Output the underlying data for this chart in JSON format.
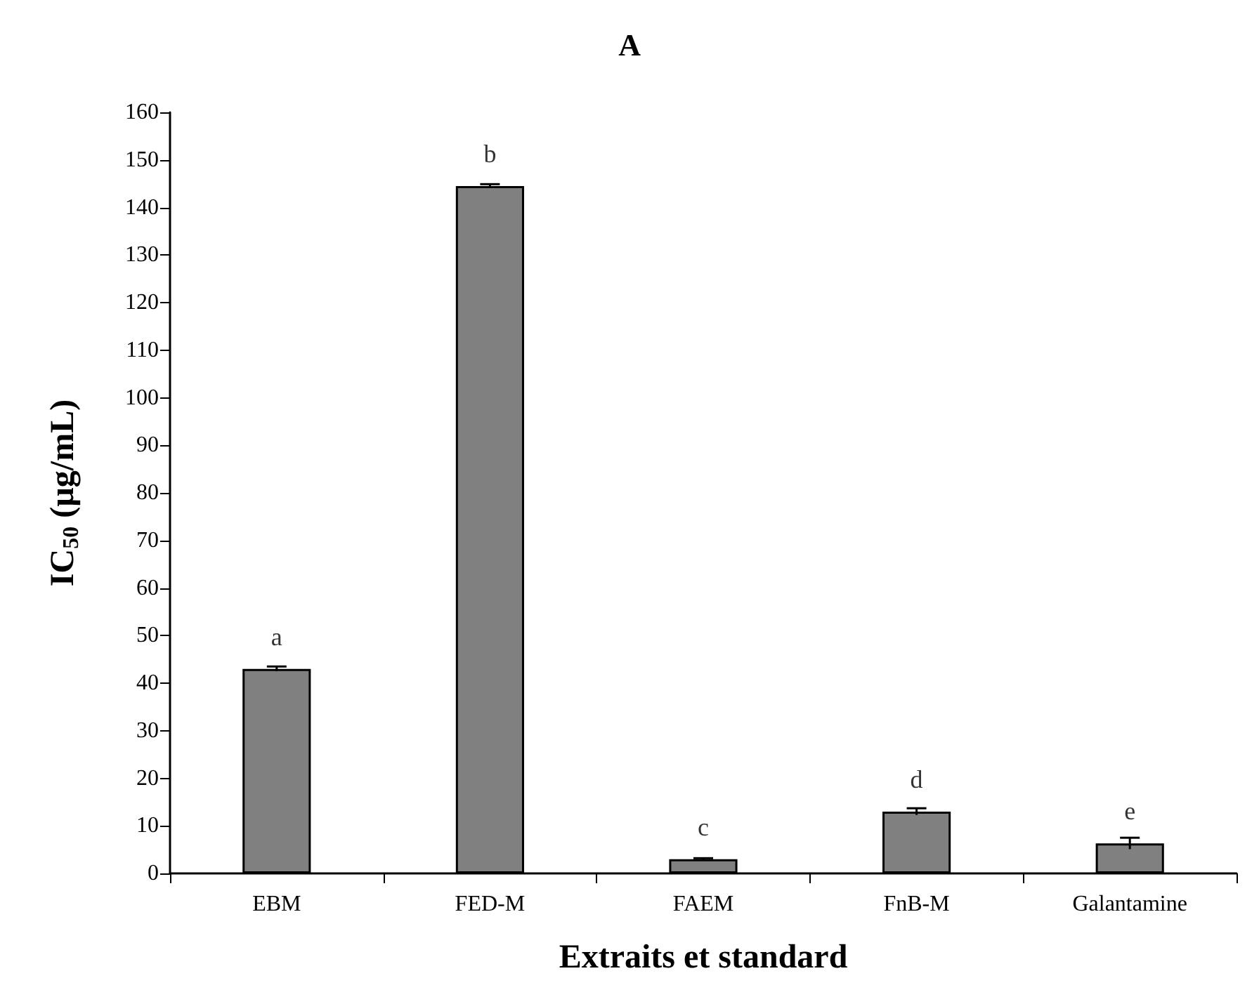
{
  "chart_data": {
    "type": "bar",
    "title": "A",
    "xlabel": "Extraits et standard",
    "ylabel": "IC$_{50}$ (µg/mL)",
    "categories": [
      "EBM",
      "FED-M",
      "FAEM",
      "FnB-M",
      "Galantamine"
    ],
    "series": [
      {
        "color": "#808080",
        "values": [
          43,
          144.5,
          3,
          13,
          6.3
        ],
        "errors": [
          0.5,
          0.4,
          0.2,
          0.7,
          1.2
        ]
      }
    ],
    "ylim": [
      0,
      160
    ],
    "yticks": [
      0,
      10,
      20,
      30,
      40,
      50,
      60,
      70,
      80,
      90,
      100,
      110,
      120,
      130,
      140,
      150,
      160
    ],
    "grid": false,
    "annotations": [
      {
        "text": "a",
        "x": "EBM",
        "y": 43
      },
      {
        "text": "b",
        "x": "FED-M",
        "y": 144.5
      },
      {
        "text": "c",
        "x": "FAEM",
        "y": 3
      },
      {
        "text": "d",
        "x": "FnB-M",
        "y": 13
      },
      {
        "text": "e",
        "x": "Galantamine",
        "y": 6.3
      }
    ]
  }
}
